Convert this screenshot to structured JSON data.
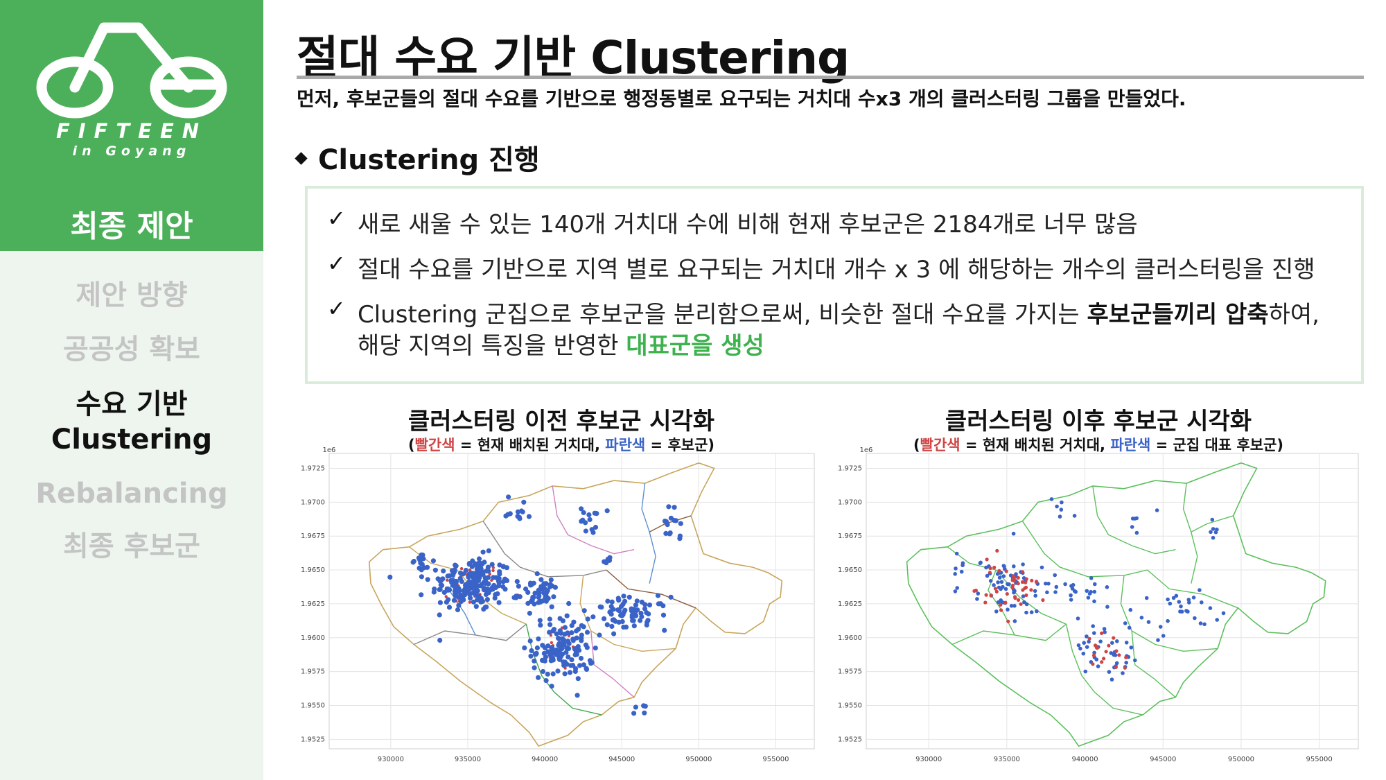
{
  "brand": {
    "name": "FIFTEEN",
    "sub": "in Goyang",
    "section_title": "최종 제안",
    "logo_icon": "bicycle-icon",
    "color": "#4caf5a"
  },
  "nav": {
    "items": [
      {
        "label": "제안 방향",
        "active": false
      },
      {
        "label": "공공성 확보",
        "active": false
      },
      {
        "label": "수요 기반",
        "active": true
      },
      {
        "label": "Clustering",
        "active": true
      },
      {
        "label": "Rebalancing",
        "active": false
      },
      {
        "label": "최종 후보군",
        "active": false
      }
    ]
  },
  "main": {
    "title": "절대 수요 기반 Clustering",
    "subtitle": "먼저, 후보군들의 절대 수요를 기반으로 행정동별로 요구되는 거치대 수x3 개의 클러스터링 그룹을 만들었다.",
    "section_head": "Clustering 진행",
    "bullets": {
      "b1": "새로 새울 수 있는 140개 거치대 수에 비해 현재 후보군은 2184개로 너무 많음",
      "b2": "절대 수요를 기반으로 지역 별로 요구되는 거치대 개수 x 3 에 해당하는 개수의 클러스터링을 진행",
      "b3_pre": "Clustering 군집으로 후보군을 분리함으로써, 비슷한 절대 수요를 가지는 ",
      "b3_bold": "후보군들끼리 압축",
      "b3_post": "하여,",
      "b4_pre": "해당 지역의 특징을 반영한 ",
      "b4_green": "대표군을 생성"
    },
    "accent_color": "#3db24d"
  },
  "chart_data": [
    {
      "type": "scatter",
      "title": "클러스터링 이전 후보군 시각화",
      "legend_open": "(",
      "legend_red": "빨간색",
      "legend_mid": " = 현재 배치된 거치대, ",
      "legend_blue": "파란색",
      "legend_end": " = 후보군)",
      "offset_label": "1e6",
      "x_ticks": [
        "930000",
        "935000",
        "940000",
        "945000",
        "950000",
        "955000"
      ],
      "y_ticks": [
        "1.9725",
        "1.9700",
        "1.9675",
        "1.9650",
        "1.9625",
        "1.9600",
        "1.9575",
        "1.9550",
        "1.9525"
      ],
      "xlim": [
        926000,
        957500
      ],
      "ylim": [
        1.9518,
        1.9736
      ],
      "grid": true,
      "series_colors": {
        "existing": "#d04444",
        "candidates": "#3a63c8"
      },
      "region_colors": [
        "#c8a55a",
        "#888888",
        "#d080c0",
        "#5a8fd0",
        "#8a5a3a",
        "#3da84a"
      ],
      "blue_clusters": [
        {
          "x": 935200,
          "y": 1.964,
          "n": 200,
          "sx": 1300,
          "sy": 0.001
        },
        {
          "x": 941200,
          "y": 1.9592,
          "n": 130,
          "sx": 1000,
          "sy": 0.0012
        },
        {
          "x": 939600,
          "y": 1.9632,
          "n": 50,
          "sx": 700,
          "sy": 0.0006
        },
        {
          "x": 945600,
          "y": 1.9618,
          "n": 70,
          "sx": 1200,
          "sy": 0.0006
        },
        {
          "x": 932000,
          "y": 1.9656,
          "n": 14,
          "sx": 400,
          "sy": 0.0004
        },
        {
          "x": 938300,
          "y": 1.9695,
          "n": 12,
          "sx": 400,
          "sy": 0.0005
        },
        {
          "x": 943000,
          "y": 1.9687,
          "n": 14,
          "sx": 350,
          "sy": 0.0005
        },
        {
          "x": 948200,
          "y": 1.968,
          "n": 14,
          "sx": 300,
          "sy": 0.0008
        },
        {
          "x": 944100,
          "y": 1.9658,
          "n": 6,
          "sx": 200,
          "sy": 0.0002
        },
        {
          "x": 946200,
          "y": 1.9548,
          "n": 5,
          "sx": 200,
          "sy": 0.0002
        }
      ],
      "red_clusters": [
        {
          "x": 935200,
          "y": 1.9638,
          "n": 40,
          "sx": 1100,
          "sy": 0.0009
        },
        {
          "x": 941200,
          "y": 1.9592,
          "n": 15,
          "sx": 600,
          "sy": 0.0009
        }
      ]
    },
    {
      "type": "scatter",
      "title": "클러스터링 이후 후보군 시각화",
      "legend_open": "(",
      "legend_red": "빨간색",
      "legend_mid": " = 현재 배치된 거치대, ",
      "legend_blue": "파란색",
      "legend_end": " = 군집 대표 후보군)",
      "offset_label": "1e6",
      "x_ticks": [
        "930000",
        "935000",
        "940000",
        "945000",
        "950000",
        "955000"
      ],
      "y_ticks": [
        "1.9725",
        "1.9700",
        "1.9675",
        "1.9650",
        "1.9625",
        "1.9600",
        "1.9575",
        "1.9550",
        "1.9525"
      ],
      "xlim": [
        926000,
        957500
      ],
      "ylim": [
        1.9518,
        1.9736
      ],
      "grid": true,
      "series_colors": {
        "existing": "#d04444",
        "candidates": "#3a63c8"
      },
      "region_colors": [
        "#5cc05c"
      ],
      "blue_clusters": [
        {
          "x": 935200,
          "y": 1.9638,
          "n": 70,
          "sx": 1400,
          "sy": 0.0011
        },
        {
          "x": 941200,
          "y": 1.9592,
          "n": 40,
          "sx": 900,
          "sy": 0.0011
        },
        {
          "x": 939600,
          "y": 1.9632,
          "n": 20,
          "sx": 800,
          "sy": 0.0006
        },
        {
          "x": 945600,
          "y": 1.9618,
          "n": 30,
          "sx": 1300,
          "sy": 0.0008
        },
        {
          "x": 932000,
          "y": 1.9656,
          "n": 5,
          "sx": 400,
          "sy": 0.0004
        },
        {
          "x": 938300,
          "y": 1.9695,
          "n": 6,
          "sx": 500,
          "sy": 0.0005
        },
        {
          "x": 943000,
          "y": 1.9687,
          "n": 6,
          "sx": 400,
          "sy": 0.0005
        },
        {
          "x": 948200,
          "y": 1.968,
          "n": 6,
          "sx": 300,
          "sy": 0.0008
        }
      ],
      "red_clusters": [
        {
          "x": 935200,
          "y": 1.9636,
          "n": 45,
          "sx": 1100,
          "sy": 0.0009
        },
        {
          "x": 941200,
          "y": 1.959,
          "n": 18,
          "sx": 600,
          "sy": 0.0009
        }
      ]
    }
  ]
}
